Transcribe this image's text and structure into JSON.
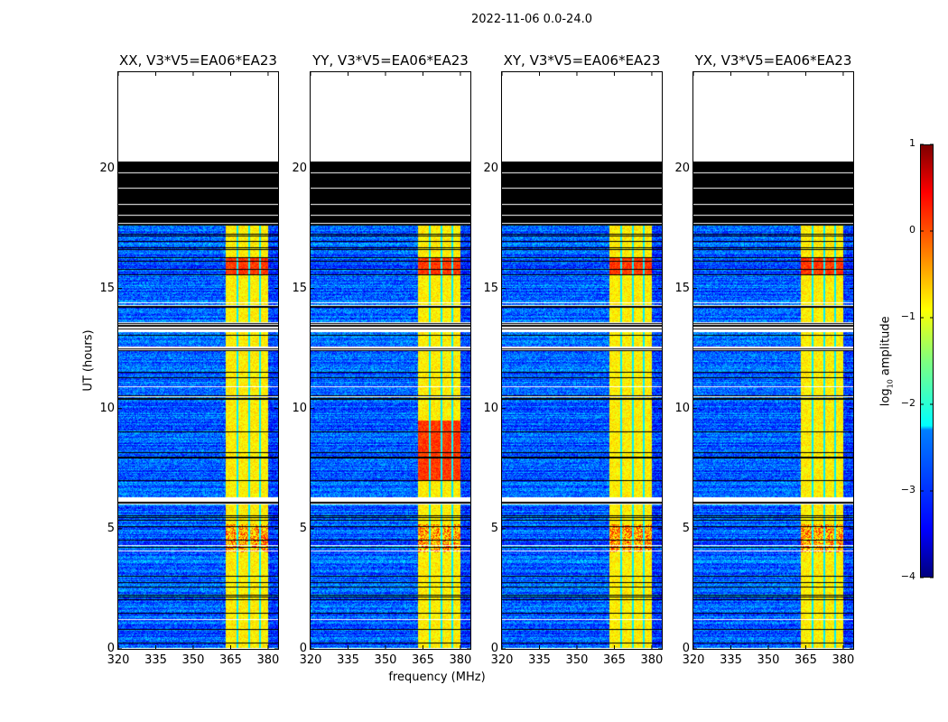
{
  "chart_data": {
    "type": "heatmap",
    "suptitle": "2022-11-06 0.0-24.0",
    "panels": [
      {
        "title": "XX, V3*V5=EA06*EA23"
      },
      {
        "title": "YY, V3*V5=EA06*EA23"
      },
      {
        "title": "XY, V3*V5=EA06*EA23"
      },
      {
        "title": "YX, V3*V5=EA06*EA23"
      }
    ],
    "xlabel": "frequency (MHz)",
    "ylabel": "UT (hours)",
    "xlim": [
      320,
      384
    ],
    "ylim": [
      0,
      24
    ],
    "xticks": [
      "320",
      "335",
      "350",
      "365",
      "380"
    ],
    "xtick_values": [
      320,
      335,
      350,
      365,
      380
    ],
    "yticks": [
      "0",
      "5",
      "10",
      "15",
      "20"
    ],
    "ytick_values": [
      0,
      5,
      10,
      15,
      20
    ],
    "colorbar": {
      "label": "log10 amplitude",
      "label_main": "log",
      "label_sub": "10",
      "label_rest": " amplitude",
      "cmap": "jet",
      "range": [
        -4,
        1
      ],
      "ticks": [
        "1",
        "0",
        "−1",
        "−2",
        "−3",
        "−4"
      ],
      "tick_values": [
        1,
        0,
        -1,
        -2,
        -3,
        -4
      ]
    },
    "structure": {
      "no_data_hours": [
        20.3,
        24
      ],
      "flagged_hours": [
        17.6,
        20.3
      ],
      "gap_hours": [
        [
          13.2,
          13.6
        ],
        [
          6.0,
          6.3
        ],
        [
          12.4,
          12.6
        ]
      ],
      "background_log_amp": -2.9,
      "rfi_band_mhz": [
        363,
        380
      ],
      "rfi_log_amp": -0.8,
      "rfi_strong_hours": [
        15.6,
        16.3
      ],
      "rfi_strong_log_amp": 0.1
    }
  }
}
